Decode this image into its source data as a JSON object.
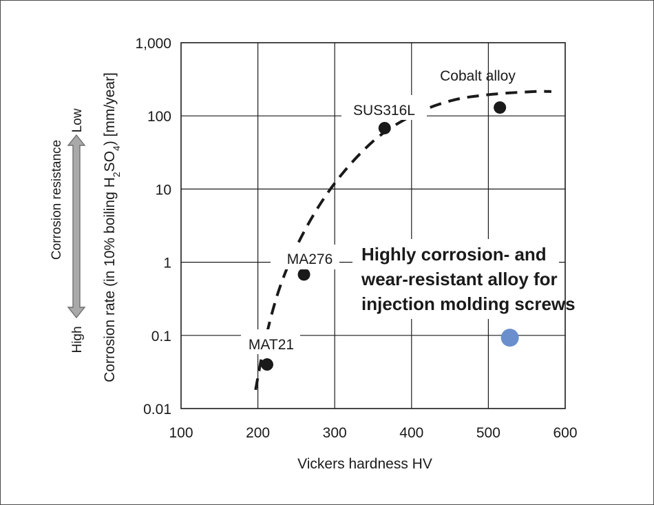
{
  "chart_data": {
    "type": "scatter",
    "xlabel": "Vickers hardness HV",
    "ylabel": {
      "prefix": "Corrosion rate (in 10% boiling H",
      "sub1": "2",
      "mid": "SO",
      "sub2": "4",
      "suffix": ") [mm/year]"
    },
    "xlim": [
      100,
      600
    ],
    "ylim": [
      0.01,
      1000
    ],
    "yscale": "log",
    "grid": true,
    "x_ticks": [
      100,
      200,
      300,
      400,
      500,
      600
    ],
    "x_tick_labels": [
      "100",
      "200",
      "300",
      "400",
      "500",
      "600"
    ],
    "y_ticks": [
      0.01,
      0.1,
      1,
      10,
      100,
      1000
    ],
    "y_tick_labels": [
      "0.01",
      "0.1",
      "1",
      "10",
      "100",
      "1,000"
    ],
    "points": [
      {
        "label": "MAT21",
        "x": 212,
        "y": 0.04,
        "color": "#1a1a1a"
      },
      {
        "label": "MA276",
        "x": 260,
        "y": 0.68,
        "color": "#1a1a1a"
      },
      {
        "label": "SUS316L",
        "x": 365,
        "y": 68,
        "color": "#1a1a1a"
      },
      {
        "label": "Cobalt alloy",
        "x": 515,
        "y": 130,
        "color": "#1a1a1a"
      }
    ],
    "highlight_point": {
      "x": 528,
      "y": 0.093,
      "color": "#6b8fcc"
    },
    "trend_curve": {
      "style": "dashed",
      "color": "#1a1a1a",
      "points": [
        [
          197,
          0.018
        ],
        [
          210,
          0.09
        ],
        [
          230,
          0.5
        ],
        [
          260,
          2.6
        ],
        [
          300,
          12
        ],
        [
          350,
          45
        ],
        [
          400,
          100
        ],
        [
          450,
          160
        ],
        [
          500,
          195
        ],
        [
          560,
          215
        ],
        [
          582,
          215
        ]
      ]
    },
    "callout": [
      "Highly corrosion- and",
      "wear-resistant alloy for",
      "injection molding screws"
    ],
    "resistance_axis": {
      "title": "Corrosion resistance",
      "low": "Low",
      "high": "High",
      "arrow_color": "#a9a9a9"
    }
  }
}
